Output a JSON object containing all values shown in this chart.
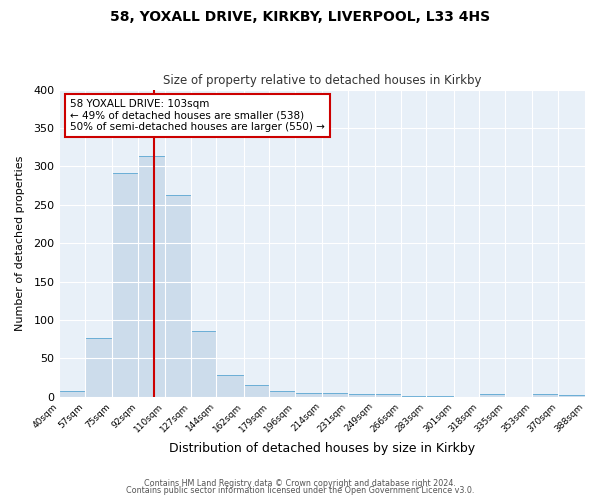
{
  "title": "58, YOXALL DRIVE, KIRKBY, LIVERPOOL, L33 4HS",
  "subtitle": "Size of property relative to detached houses in Kirkby",
  "xlabel": "Distribution of detached houses by size in Kirkby",
  "ylabel": "Number of detached properties",
  "footer_line1": "Contains HM Land Registry data © Crown copyright and database right 2024.",
  "footer_line2": "Contains public sector information licensed under the Open Government Licence v3.0.",
  "bin_edges": [
    40,
    57,
    75,
    92,
    110,
    127,
    144,
    162,
    179,
    196,
    214,
    231,
    249,
    266,
    283,
    301,
    318,
    335,
    353,
    370,
    388
  ],
  "bin_counts": [
    8,
    76,
    291,
    314,
    263,
    85,
    28,
    15,
    8,
    5,
    5,
    3,
    3,
    1,
    1,
    0,
    3,
    0,
    3,
    2
  ],
  "bar_color": "#ccdceb",
  "bar_edge_color": "#6aaed6",
  "vline_x": 103,
  "vline_color": "#cc0000",
  "annotation_text": "58 YOXALL DRIVE: 103sqm\n← 49% of detached houses are smaller (538)\n50% of semi-detached houses are larger (550) →",
  "annotation_box_color": "white",
  "annotation_box_edge_color": "#cc0000",
  "ylim": [
    0,
    400
  ],
  "background_color": "#ffffff",
  "plot_bg_color": "#e8f0f8",
  "tick_labels": [
    "40sqm",
    "57sqm",
    "75sqm",
    "92sqm",
    "110sqm",
    "127sqm",
    "144sqm",
    "162sqm",
    "179sqm",
    "196sqm",
    "214sqm",
    "231sqm",
    "249sqm",
    "266sqm",
    "283sqm",
    "301sqm",
    "318sqm",
    "335sqm",
    "353sqm",
    "370sqm",
    "388sqm"
  ],
  "grid_color": "#ffffff",
  "title_fontsize": 10,
  "subtitle_fontsize": 8.5,
  "ylabel_fontsize": 8,
  "xlabel_fontsize": 9,
  "tick_fontsize": 6.5,
  "annotation_fontsize": 7.5,
  "footer_fontsize": 5.8
}
